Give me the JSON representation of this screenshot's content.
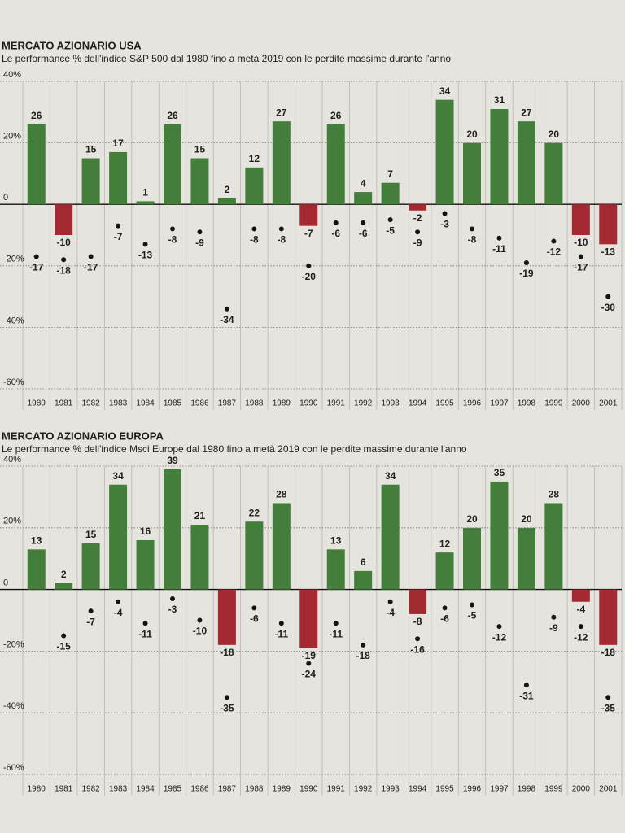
{
  "chart_data": [
    {
      "type": "bar",
      "title": "MERCATO AZIONARIO USA",
      "subtitle": "Le performance % dell'indice S&P 500 dal 1980 fino a metà 2019 con le perdite massime durante l'anno",
      "categories": [
        "1980",
        "1981",
        "1982",
        "1983",
        "1984",
        "1985",
        "1986",
        "1987",
        "1988",
        "1989",
        "1990",
        "1991",
        "1992",
        "1993",
        "1994",
        "1995",
        "1996",
        "1997",
        "1998",
        "1999",
        "2000",
        "2001"
      ],
      "values": [
        26,
        -10,
        15,
        17,
        1,
        26,
        15,
        2,
        12,
        27,
        -7,
        26,
        4,
        7,
        -2,
        34,
        20,
        31,
        27,
        20,
        -10,
        -13
      ],
      "min_values": [
        -17,
        -18,
        -17,
        -7,
        -13,
        -8,
        -9,
        -34,
        -8,
        -8,
        -20,
        -6,
        -6,
        -5,
        -9,
        -3,
        -8,
        -11,
        -19,
        -12,
        -17,
        -30
      ],
      "positive_color": "#437f3b",
      "negative_color": "#a42a32",
      "dot_color": "#151515",
      "ylim": [
        -60,
        40
      ],
      "yticks": [
        {
          "value": 40,
          "label": "40%"
        },
        {
          "value": 20,
          "label": "20%"
        },
        0,
        {
          "value": -20,
          "label": "-20%"
        },
        {
          "value": -40,
          "label": "-40%"
        },
        {
          "value": -60,
          "label": "-60%"
        }
      ],
      "grid": true
    },
    {
      "type": "bar",
      "title": "MERCATO AZIONARIO EUROPA",
      "subtitle": "Le performance % dell'indice Msci Europe dal 1980 fino a metà 2019 con le perdite massime durante l'anno",
      "categories": [
        "1980",
        "1981",
        "1982",
        "1983",
        "1984",
        "1985",
        "1986",
        "1987",
        "1988",
        "1989",
        "1990",
        "1991",
        "1992",
        "1993",
        "1994",
        "1995",
        "1996",
        "1997",
        "1998",
        "1999",
        "2000",
        "2001"
      ],
      "values": [
        13,
        2,
        15,
        34,
        16,
        39,
        21,
        -18,
        22,
        28,
        -19,
        13,
        6,
        34,
        -8,
        12,
        20,
        35,
        20,
        28,
        -4,
        -18
      ],
      "min_values": [
        null,
        -15,
        -7,
        -4,
        -11,
        -3,
        -10,
        -35,
        -6,
        -11,
        -24,
        -11,
        -18,
        -4,
        -16,
        -6,
        -5,
        -12,
        -31,
        -9,
        -12,
        -35
      ],
      "positive_color": "#437f3b",
      "negative_color": "#a42a32",
      "dot_color": "#151515",
      "ylim": [
        -60,
        40
      ],
      "yticks": [
        {
          "value": 40,
          "label": "40%"
        },
        {
          "value": 20,
          "label": "20%"
        },
        0,
        {
          "value": -20,
          "label": "-20%"
        },
        {
          "value": -40,
          "label": "-40%"
        },
        {
          "value": -60,
          "label": "-60%"
        }
      ],
      "grid": true
    }
  ]
}
